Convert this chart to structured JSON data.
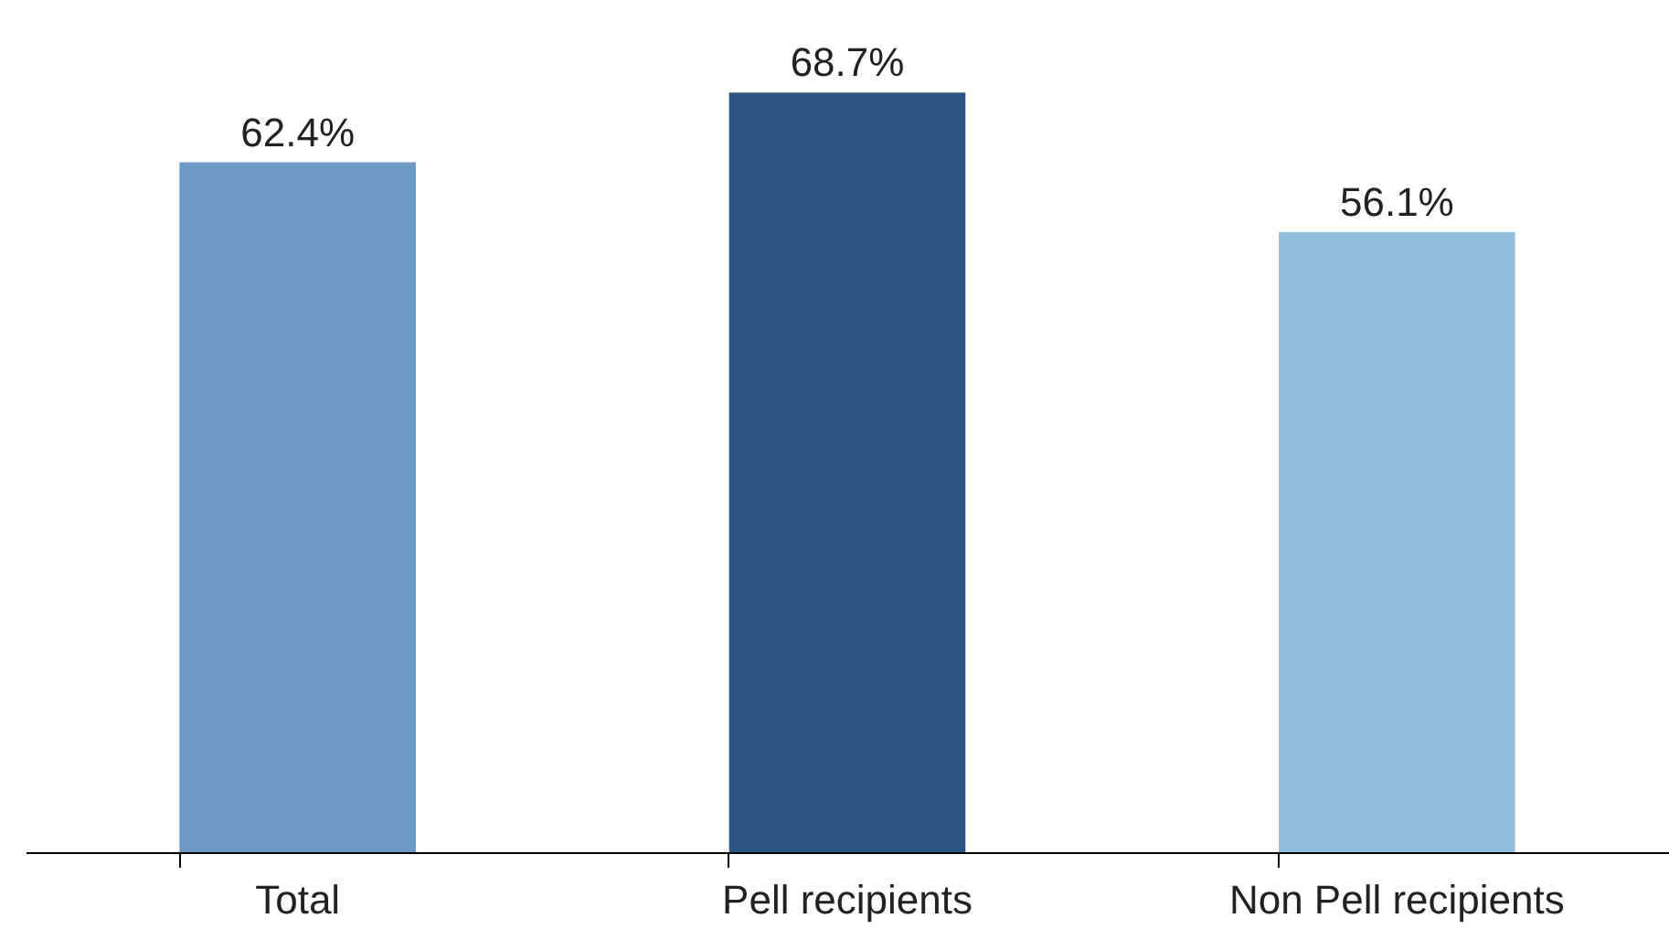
{
  "chart_data": {
    "type": "bar",
    "categories": [
      "Total",
      "Pell recipients",
      "Non Pell recipients"
    ],
    "values": [
      62.4,
      68.7,
      56.1
    ],
    "colors": [
      "#6a9ac4",
      "#2c5580",
      "#93bfdf"
    ],
    "value_labels": [
      "62.4%",
      "68.7%",
      "56.1%"
    ]
  }
}
